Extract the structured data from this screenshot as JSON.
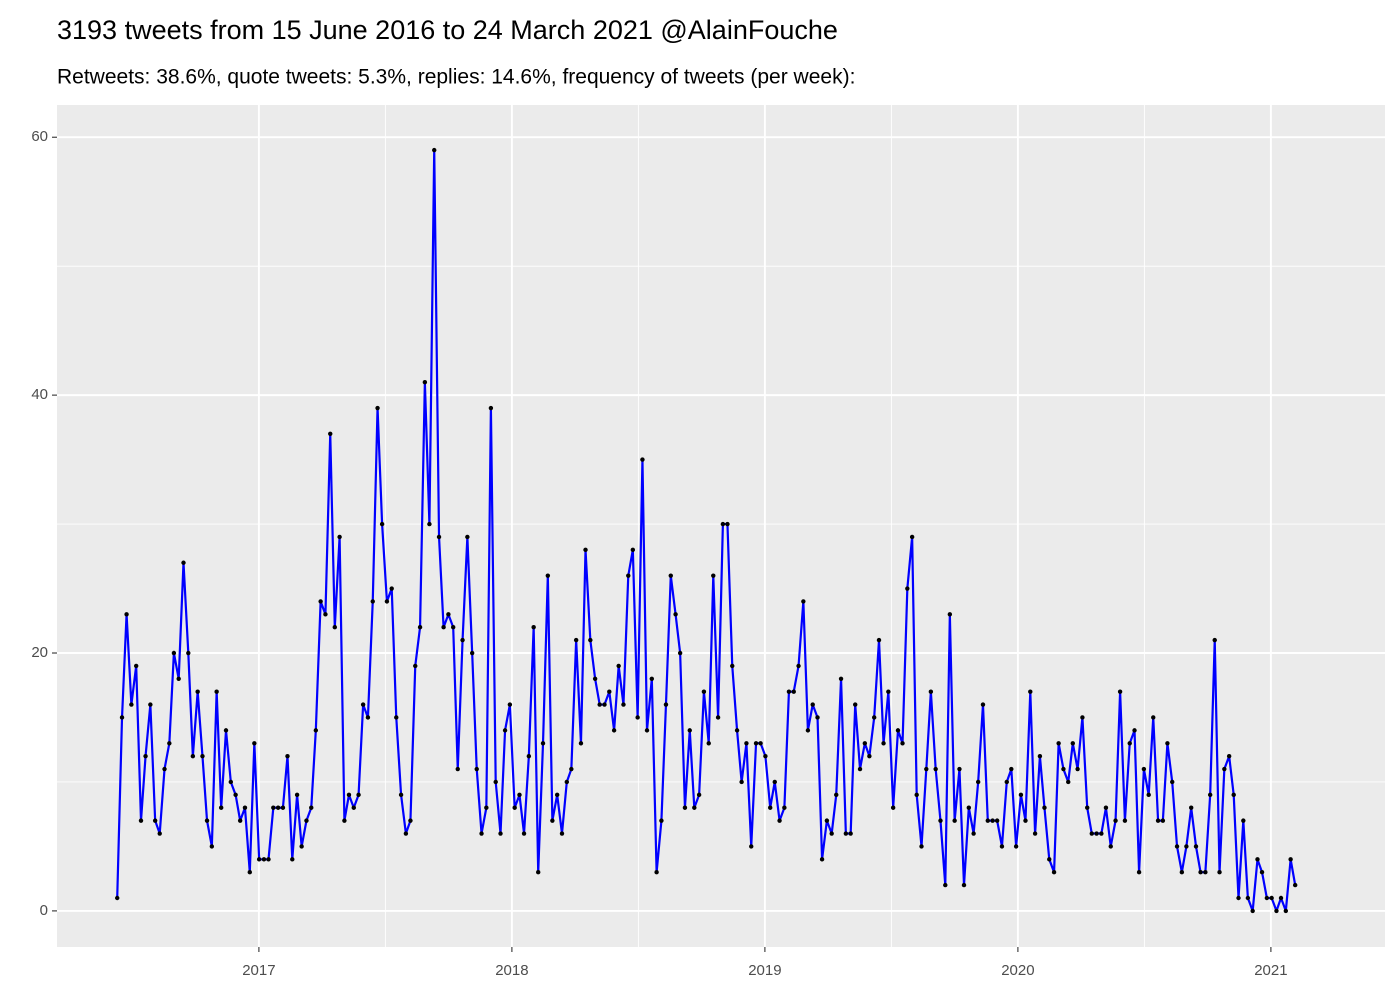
{
  "chart_data": {
    "type": "line",
    "title": "3193 tweets from 15 June 2016 to 24 March 2021 @AlainFouche",
    "subtitle": "Retweets: 38.6%, quote tweets: 5.3%, replies: 14.6%, frequency of tweets (per week):",
    "x": [
      2016.44,
      2016.459,
      2016.477,
      2016.496,
      2016.515,
      2016.534,
      2016.552,
      2016.571,
      2016.59,
      2016.608,
      2016.627,
      2016.646,
      2016.664,
      2016.683,
      2016.702,
      2016.721,
      2016.739,
      2016.758,
      2016.777,
      2016.795,
      2016.814,
      2016.833,
      2016.851,
      2016.87,
      2016.889,
      2016.908,
      2016.926,
      2016.945,
      2016.964,
      2016.982,
      2017.001,
      2017.02,
      2017.038,
      2017.057,
      2017.076,
      2017.095,
      2017.113,
      2017.132,
      2017.151,
      2017.169,
      2017.188,
      2017.207,
      2017.225,
      2017.244,
      2017.263,
      2017.282,
      2017.3,
      2017.319,
      2017.338,
      2017.356,
      2017.375,
      2017.394,
      2017.412,
      2017.431,
      2017.45,
      2017.469,
      2017.487,
      2017.506,
      2017.525,
      2017.543,
      2017.562,
      2017.581,
      2017.599,
      2017.618,
      2017.637,
      2017.656,
      2017.674,
      2017.693,
      2017.712,
      2017.73,
      2017.749,
      2017.768,
      2017.786,
      2017.805,
      2017.824,
      2017.843,
      2017.861,
      2017.88,
      2017.899,
      2017.917,
      2017.936,
      2017.955,
      2017.973,
      2017.992,
      2018.011,
      2018.03,
      2018.048,
      2018.067,
      2018.086,
      2018.104,
      2018.123,
      2018.142,
      2018.16,
      2018.179,
      2018.198,
      2018.217,
      2018.235,
      2018.254,
      2018.273,
      2018.291,
      2018.31,
      2018.329,
      2018.347,
      2018.366,
      2018.385,
      2018.404,
      2018.422,
      2018.441,
      2018.46,
      2018.478,
      2018.497,
      2018.516,
      2018.534,
      2018.553,
      2018.572,
      2018.591,
      2018.609,
      2018.628,
      2018.647,
      2018.665,
      2018.684,
      2018.703,
      2018.721,
      2018.74,
      2018.759,
      2018.778,
      2018.796,
      2018.815,
      2018.834,
      2018.852,
      2018.871,
      2018.89,
      2018.908,
      2018.927,
      2018.946,
      2018.965,
      2018.983,
      2019.002,
      2019.021,
      2019.039,
      2019.058,
      2019.077,
      2019.095,
      2019.114,
      2019.133,
      2019.152,
      2019.17,
      2019.189,
      2019.208,
      2019.226,
      2019.245,
      2019.264,
      2019.282,
      2019.301,
      2019.32,
      2019.339,
      2019.357,
      2019.376,
      2019.395,
      2019.413,
      2019.432,
      2019.451,
      2019.469,
      2019.488,
      2019.507,
      2019.526,
      2019.544,
      2019.563,
      2019.582,
      2019.6,
      2019.619,
      2019.638,
      2019.656,
      2019.675,
      2019.694,
      2019.713,
      2019.731,
      2019.75,
      2019.769,
      2019.787,
      2019.806,
      2019.825,
      2019.843,
      2019.862,
      2019.881,
      2019.9,
      2019.918,
      2019.937,
      2019.956,
      2019.974,
      2019.993,
      2020.012,
      2020.03,
      2020.049,
      2020.068,
      2020.087,
      2020.105,
      2020.124,
      2020.143,
      2020.161,
      2020.18,
      2020.199,
      2020.217,
      2020.236,
      2020.255,
      2020.274,
      2020.292,
      2020.311,
      2020.33,
      2020.348,
      2020.367,
      2020.386,
      2020.404,
      2020.423,
      2020.442,
      2020.461,
      2020.479,
      2020.498,
      2020.517,
      2020.535,
      2020.554,
      2020.573,
      2020.591,
      2020.61,
      2020.629,
      2020.648,
      2020.666,
      2020.685,
      2020.704,
      2020.722,
      2020.741,
      2020.76,
      2020.778,
      2020.797,
      2020.816,
      2020.835,
      2020.853,
      2020.872,
      2020.891,
      2020.909,
      2020.928,
      2020.947,
      2020.965,
      2020.984,
      2021.003,
      2021.022,
      2021.04,
      2021.059,
      2021.078,
      2021.096
    ],
    "series": [
      {
        "color": "#0000ff",
        "marker_color": "#000000",
        "values": [
          1,
          15,
          23,
          16,
          19,
          7,
          12,
          16,
          7,
          6,
          11,
          13,
          20,
          18,
          27,
          20,
          12,
          17,
          12,
          7,
          5,
          17,
          8,
          14,
          10,
          9,
          7,
          8,
          3,
          13,
          4,
          4,
          4,
          8,
          8,
          8,
          12,
          4,
          9,
          5,
          7,
          8,
          14,
          24,
          23,
          37,
          22,
          29,
          7,
          9,
          8,
          9,
          16,
          15,
          24,
          39,
          30,
          24,
          25,
          15,
          9,
          6,
          7,
          19,
          22,
          41,
          30,
          59,
          29,
          22,
          23,
          22,
          11,
          21,
          29,
          20,
          11,
          6,
          8,
          39,
          10,
          6,
          14,
          16,
          8,
          9,
          6,
          12,
          22,
          3,
          13,
          26,
          7,
          9,
          6,
          10,
          11,
          21,
          13,
          28,
          21,
          18,
          16,
          16,
          17,
          14,
          19,
          16,
          26,
          28,
          15,
          35,
          14,
          18,
          3,
          7,
          16,
          26,
          23,
          20,
          8,
          14,
          8,
          9,
          17,
          13,
          26,
          15,
          30,
          30,
          19,
          14,
          10,
          13,
          5,
          13,
          13,
          12,
          8,
          10,
          7,
          8,
          17,
          17,
          19,
          24,
          14,
          16,
          15,
          4,
          7,
          6,
          9,
          18,
          6,
          6,
          16,
          11,
          13,
          12,
          15,
          21,
          13,
          17,
          8,
          14,
          13,
          25,
          29,
          9,
          5,
          11,
          17,
          11,
          7,
          2,
          23,
          7,
          11,
          2,
          8,
          6,
          10,
          16,
          7,
          7,
          7,
          5,
          10,
          11,
          5,
          9,
          7,
          17,
          6,
          12,
          8,
          4,
          3,
          13,
          11,
          10,
          13,
          11,
          15,
          8,
          6,
          6,
          6,
          8,
          5,
          7,
          17,
          7,
          13,
          14,
          3,
          11,
          9,
          15,
          7,
          7,
          13,
          10,
          5,
          3,
          5,
          8,
          5,
          3,
          3,
          9,
          21,
          3,
          11,
          12,
          9,
          1,
          7,
          1,
          0,
          4,
          3,
          1,
          1,
          0,
          1,
          0,
          4,
          2
        ]
      }
    ],
    "xlim": [
      2016.202,
      2021.451
    ],
    "xticks": [
      2017,
      2018,
      2019,
      2020,
      2021
    ],
    "ylim": [
      -2.8,
      62.5
    ],
    "yticks": [
      0,
      20,
      40,
      60
    ],
    "grid": true
  }
}
